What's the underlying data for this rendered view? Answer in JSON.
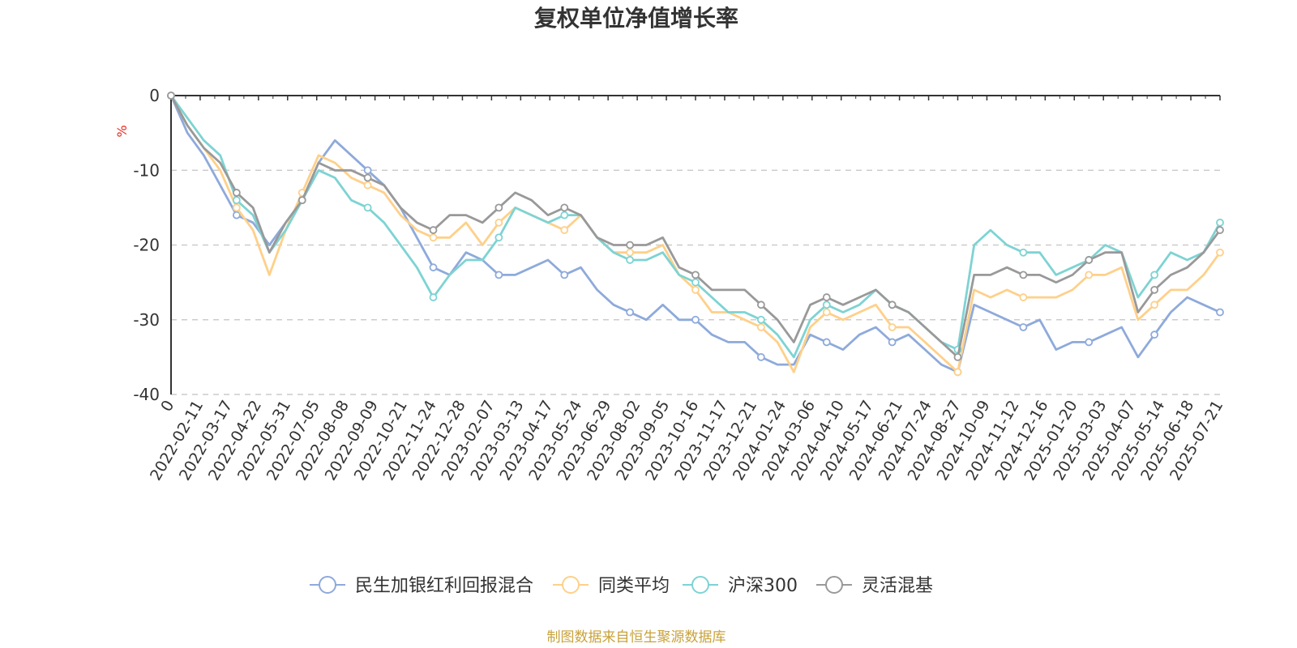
{
  "chart_data": {
    "type": "line",
    "title": "复权单位净值增长率",
    "y_unit": "%",
    "ylim": [
      -40,
      0
    ],
    "y_ticks": [
      "0",
      "-10",
      "-20",
      "-30",
      "-40"
    ],
    "x_tick_labels": [
      "0",
      "2022-02-11",
      "2022-03-17",
      "2022-04-22",
      "2022-05-31",
      "2022-07-05",
      "2022-08-08",
      "2022-09-09",
      "2022-10-21",
      "2022-11-24",
      "2022-12-28",
      "2023-02-07",
      "2023-03-13",
      "2023-04-17",
      "2023-05-24",
      "2023-06-29",
      "2023-08-02",
      "2023-09-05",
      "2023-10-16",
      "2023-11-17",
      "2023-12-21",
      "2024-01-24",
      "2024-03-06",
      "2024-04-10",
      "2024-05-17",
      "2024-06-21",
      "2024-07-24",
      "2024-08-27",
      "2024-10-09",
      "2024-11-12",
      "2024-12-16",
      "2025-01-20",
      "2025-03-03",
      "2025-04-07",
      "2025-05-14",
      "2025-06-18",
      "2025-07-21"
    ],
    "grid": "dashed horizontal",
    "legend_position": "bottom",
    "series": [
      {
        "name": "民生加银红利回报混合",
        "color": "#8eaadb",
        "values": [
          0,
          -5,
          -8,
          -12,
          -16,
          -17,
          -20,
          -17,
          -14,
          -9,
          -6,
          -8,
          -10,
          -12,
          -15,
          -19,
          -23,
          -24,
          -21,
          -22,
          -24,
          -24,
          -23,
          -22,
          -24,
          -23,
          -26,
          -28,
          -29,
          -30,
          -28,
          -30,
          -30,
          -32,
          -33,
          -33,
          -35,
          -36,
          -36,
          -32,
          -33,
          -34,
          -32,
          -31,
          -33,
          -32,
          -34,
          -36,
          -37,
          -28,
          -29,
          -30,
          -31,
          -30,
          -34,
          -33,
          -33,
          -32,
          -31,
          -35,
          -32,
          -29,
          -27,
          -28,
          -29
        ]
      },
      {
        "name": "同类平均",
        "color": "#fed08a",
        "values": [
          0,
          -4,
          -7,
          -10,
          -15,
          -18,
          -24,
          -18,
          -13,
          -8,
          -9,
          -11,
          -12,
          -13,
          -16,
          -18,
          -19,
          -19,
          -17,
          -20,
          -17,
          -15,
          -16,
          -17,
          -18,
          -16,
          -19,
          -21,
          -21,
          -21,
          -20,
          -24,
          -26,
          -29,
          -29,
          -30,
          -31,
          -33,
          -37,
          -31,
          -29,
          -30,
          -29,
          -28,
          -31,
          -31,
          -33,
          -35,
          -37,
          -26,
          -27,
          -26,
          -27,
          -27,
          -27,
          -26,
          -24,
          -24,
          -23,
          -30,
          -28,
          -26,
          -26,
          -24,
          -21
        ]
      },
      {
        "name": "沪深300",
        "color": "#7ed3d3",
        "values": [
          0,
          -3,
          -6,
          -8,
          -14,
          -16,
          -21,
          -18,
          -14,
          -10,
          -11,
          -14,
          -15,
          -17,
          -20,
          -23,
          -27,
          -24,
          -22,
          -22,
          -19,
          -15,
          -16,
          -17,
          -16,
          -16,
          -19,
          -21,
          -22,
          -22,
          -21,
          -24,
          -25,
          -27,
          -29,
          -29,
          -30,
          -32,
          -35,
          -30,
          -28,
          -29,
          -28,
          -26,
          -28,
          -29,
          -31,
          -33,
          -34,
          -20,
          -18,
          -20,
          -21,
          -21,
          -24,
          -23,
          -22,
          -20,
          -21,
          -27,
          -24,
          -21,
          -22,
          -21,
          -17
        ]
      },
      {
        "name": "灵活混基",
        "color": "#999999",
        "values": [
          0,
          -4,
          -7,
          -9,
          -13,
          -15,
          -21,
          -17,
          -14,
          -9,
          -10,
          -10,
          -11,
          -12,
          -15,
          -17,
          -18,
          -16,
          -16,
          -17,
          -15,
          -13,
          -14,
          -16,
          -15,
          -16,
          -19,
          -20,
          -20,
          -20,
          -19,
          -23,
          -24,
          -26,
          -26,
          -26,
          -28,
          -30,
          -33,
          -28,
          -27,
          -28,
          -27,
          -26,
          -28,
          -29,
          -31,
          -33,
          -35,
          -24,
          -24,
          -23,
          -24,
          -24,
          -25,
          -24,
          -22,
          -21,
          -21,
          -29,
          -26,
          -24,
          -23,
          -21,
          -18
        ]
      }
    ]
  },
  "legend": {
    "items": [
      {
        "label": "民生加银红利回报混合",
        "color": "#8eaadb"
      },
      {
        "label": "同类平均",
        "color": "#fed08a"
      },
      {
        "label": "沪深300",
        "color": "#7ed3d3"
      },
      {
        "label": "灵活混基",
        "color": "#999999"
      }
    ]
  },
  "footer": {
    "source": "制图数据来自恒生聚源数据库"
  }
}
